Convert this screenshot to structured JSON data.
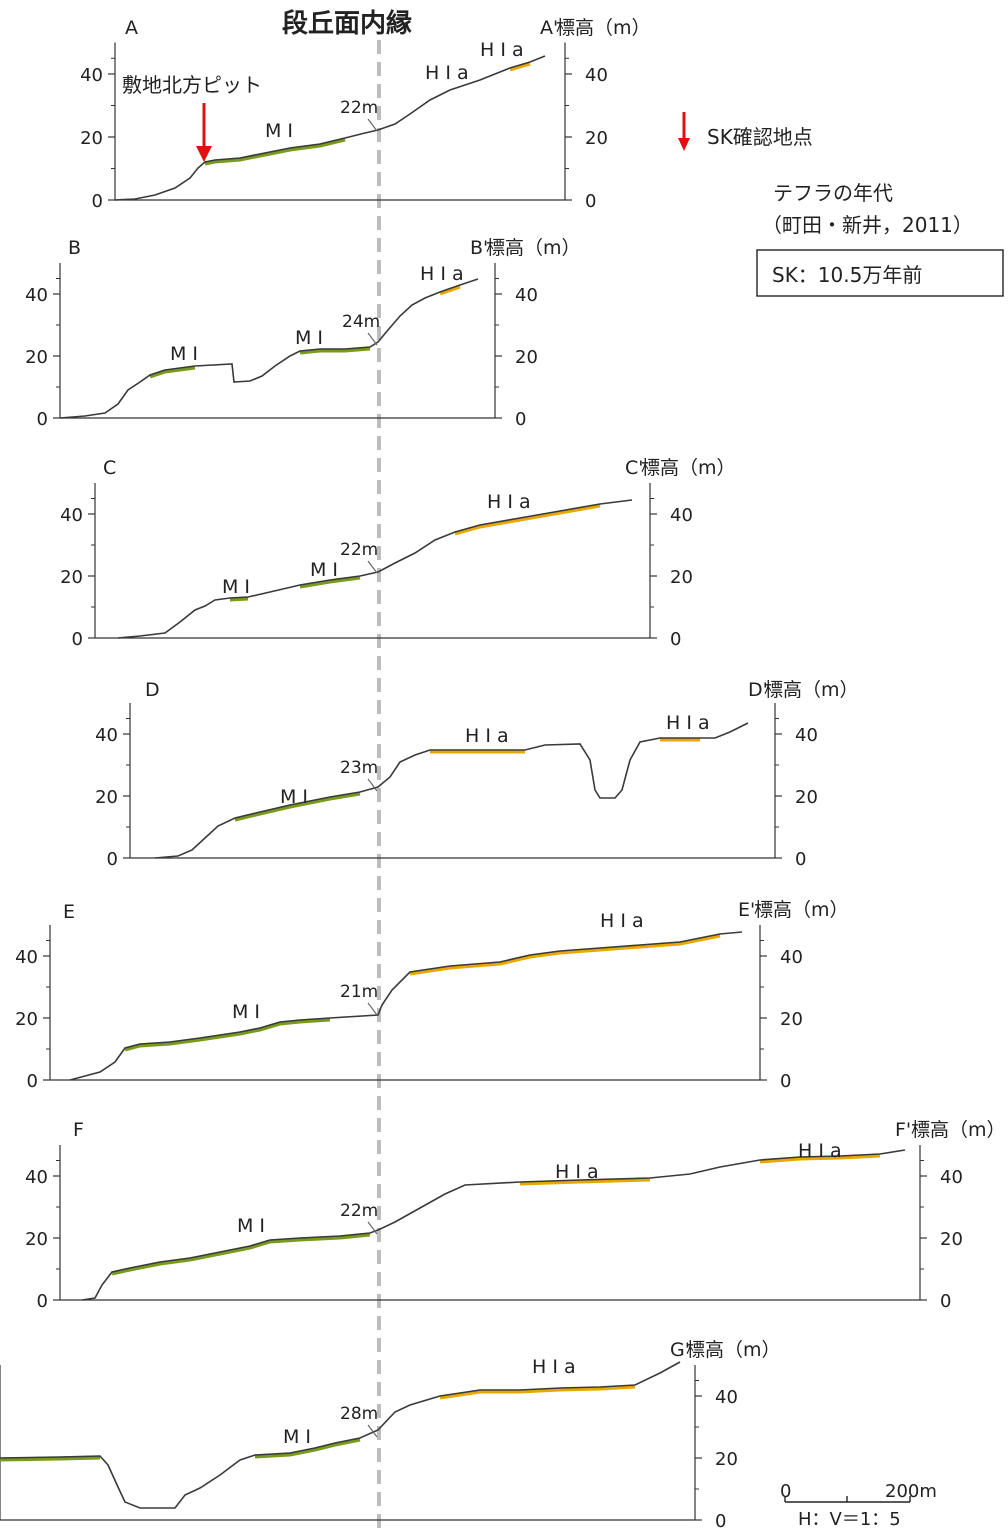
{
  "title": "段丘面内縁",
  "legend": {
    "sk_marker_label": "SK確認地点",
    "tephra_title": "テフラの年代",
    "tephra_source": "（町田・新井，2011）",
    "tephra_box": "SK：10.5万年前"
  },
  "pit_label": "敷地北方ピット",
  "y_axis_label": "標高（m）",
  "y_ticks": [
    "0",
    "20",
    "40"
  ],
  "scale": {
    "zero": "0",
    "length": "200m",
    "ratio": "H：V＝1：5"
  },
  "colors": {
    "profile": "#3a3a3a",
    "mi_surface": "#7a9a1e",
    "hia_surface": "#e8a800",
    "sk_arrow": "#e01010",
    "dashed_line": "#bdbdbd"
  },
  "profiles": [
    {
      "id": "A",
      "start": "A",
      "end": "A'",
      "inner_edge": "22m",
      "surfaces": [
        {
          "label": "M I"
        },
        {
          "label": "H I a"
        },
        {
          "label": "H I a"
        }
      ]
    },
    {
      "id": "B",
      "start": "B",
      "end": "B'",
      "inner_edge": "24m",
      "surfaces": [
        {
          "label": "M I"
        },
        {
          "label": "M I"
        },
        {
          "label": "H I a"
        }
      ]
    },
    {
      "id": "C",
      "start": "C",
      "end": "C'",
      "inner_edge": "22m",
      "surfaces": [
        {
          "label": "M I"
        },
        {
          "label": "M I"
        },
        {
          "label": "H I a"
        }
      ]
    },
    {
      "id": "D",
      "start": "D",
      "end": "D'",
      "inner_edge": "23m",
      "surfaces": [
        {
          "label": "M I"
        },
        {
          "label": "H I a"
        },
        {
          "label": "H I a"
        }
      ]
    },
    {
      "id": "E",
      "start": "E",
      "end": "E'",
      "inner_edge": "21m",
      "surfaces": [
        {
          "label": "M I"
        },
        {
          "label": "H I a"
        }
      ]
    },
    {
      "id": "F",
      "start": "F",
      "end": "F'",
      "inner_edge": "22m",
      "surfaces": [
        {
          "label": "M I"
        },
        {
          "label": "H I a"
        },
        {
          "label": "H I a"
        }
      ]
    },
    {
      "id": "G",
      "start": "",
      "end": "G'",
      "inner_edge": "28m",
      "surfaces": [
        {
          "label": "M I"
        },
        {
          "label": "H I a"
        }
      ]
    }
  ]
}
